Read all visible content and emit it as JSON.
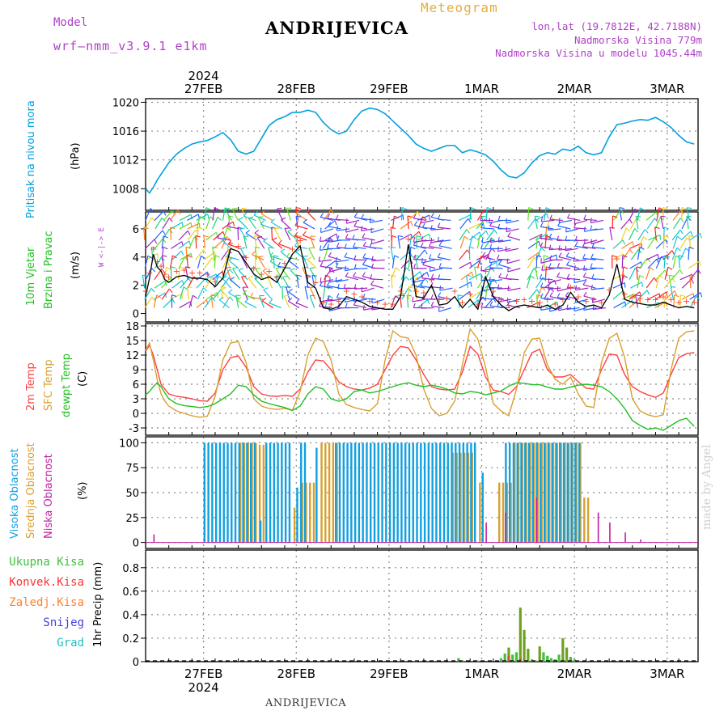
{
  "header": {
    "model_label": "Model",
    "model_name": "wrf–nmm_v3.9.1  e1km",
    "title": "ANDRIJEVICA",
    "meteogram": "Meteogram",
    "lonlat": "lon,lat (19.7812E, 42.7188N)",
    "elevation": "Nadmorska Visina 779m",
    "model_elevation": "Nadmorska Visina u modelu 1045.44m"
  },
  "footer": {
    "station": "ANDRIJEVICA",
    "watermark": "made by Angel"
  },
  "colors": {
    "pressure": "#00a0e0",
    "temp2m": "#ff4040",
    "sfc": "#d8a030",
    "dewpt": "#20c020",
    "cloud_high": "#10a0e0",
    "cloud_mid": "#d8a030",
    "cloud_low": "#c020a0",
    "rain_total": "#40c040",
    "rain_conv": "#ff3030",
    "rain_frz": "#ff8030",
    "snow": "#4040e0",
    "hail": "#20c0c0"
  },
  "chart_data": [
    {
      "type": "line",
      "panel": "pressure",
      "ylabel_left": "Pritisak na nivou mora",
      "ylabel_units": "(hPa)",
      "ylim": [
        1005,
        1020.5
      ],
      "yticks": [
        "1008",
        "1012",
        "1016",
        "1020"
      ],
      "x_days": [
        "27FEB",
        "28FEB",
        "29FEB",
        "1MAR",
        "2MAR",
        "3MAR"
      ],
      "x_year": "2024",
      "grid": true,
      "series": [
        {
          "x": [
            0,
            1,
            2,
            3,
            4,
            6,
            8,
            10,
            12,
            14,
            16,
            18,
            20,
            22,
            24,
            26,
            28,
            30,
            32,
            34,
            36,
            38,
            40,
            42,
            44,
            46,
            48,
            50,
            52,
            54,
            56,
            58,
            60,
            62,
            64,
            66,
            68,
            70,
            72,
            74,
            76,
            78,
            80,
            82,
            84,
            86,
            88,
            90,
            92,
            94,
            96,
            98,
            100,
            102,
            104,
            106,
            108,
            110,
            112,
            114,
            116,
            118,
            120,
            122,
            124,
            126,
            128,
            130,
            132,
            134,
            136,
            138,
            140,
            142
          ],
          "y": [
            1008,
            1007.4,
            1008.2,
            1009.2,
            1010.0,
            1011.6,
            1012.8,
            1013.6,
            1014.2,
            1014.5,
            1014.7,
            1015.2,
            1015.8,
            1014.8,
            1013.2,
            1012.8,
            1013.2,
            1015.0,
            1016.8,
            1017.6,
            1018.0,
            1018.6,
            1018.6,
            1018.9,
            1018.6,
            1017.2,
            1016.2,
            1015.6,
            1016.0,
            1017.6,
            1018.8,
            1019.2,
            1019.0,
            1018.4,
            1017.4,
            1016.4,
            1015.4,
            1014.2,
            1013.6,
            1013.2,
            1013.6,
            1014.0,
            1014.0,
            1013.0,
            1013.4,
            1013.1,
            1012.7,
            1011.8,
            1010.6,
            1009.7,
            1009.5,
            1010.2,
            1011.6,
            1012.6,
            1013.0,
            1012.8,
            1013.5,
            1013.3,
            1013.9,
            1013.0,
            1012.7,
            1013.0,
            1015.2,
            1016.9,
            1017.1,
            1017.4,
            1017.6,
            1017.5,
            1017.9,
            1017.3,
            1016.5,
            1015.4,
            1014.5,
            1014.2
          ]
        }
      ]
    },
    {
      "type": "barbs",
      "panel": "wind",
      "ylabel_left": [
        "10m Vjetar",
        "Brzina i Pravac"
      ],
      "ylabel_units": "(m/s)",
      "direction_key": "W <-|-> E",
      "ylim": [
        -0.6,
        7.2
      ],
      "yticks": [
        "0",
        "2",
        "4",
        "6"
      ],
      "series": [
        {
          "name": "speed",
          "x": [
            0,
            1,
            2,
            3,
            4,
            5,
            6,
            8,
            10,
            12,
            14,
            16,
            18,
            20,
            22,
            24,
            26,
            28,
            30,
            32,
            34,
            36,
            38,
            40,
            42,
            44,
            46,
            48,
            50,
            52,
            54,
            56,
            58,
            60,
            62,
            64,
            66,
            68,
            70,
            72,
            74,
            76,
            78,
            80,
            82,
            84,
            86,
            88,
            90,
            92,
            94,
            96,
            98,
            100,
            102,
            104,
            106,
            108,
            110,
            112,
            114,
            116,
            118,
            120,
            122,
            124,
            126,
            128,
            130,
            132,
            134,
            136,
            138,
            140,
            142
          ],
          "y": [
            1.2,
            2.5,
            4.2,
            3.3,
            3.0,
            2.4,
            2.2,
            2.6,
            2.7,
            2.5,
            2.5,
            2.4,
            1.9,
            2.5,
            4.6,
            4.4,
            3.6,
            2.8,
            2.4,
            2.6,
            2.2,
            3.2,
            4.2,
            4.8,
            2.2,
            1.8,
            0.4,
            0.3,
            0.5,
            1.2,
            1.0,
            0.8,
            0.5,
            0.4,
            0.3,
            0.3,
            1.2,
            4.9,
            1.2,
            1.1,
            2.0,
            0.6,
            0.7,
            1.2,
            0.4,
            1.0,
            0.3,
            2.6,
            1.2,
            0.6,
            0.2,
            0.5,
            0.6,
            0.5,
            0.4,
            0.6,
            0.3,
            0.6,
            1.5,
            0.8,
            0.5,
            0.6,
            0.4,
            1.3,
            3.5,
            1.0,
            0.8,
            0.7,
            0.6,
            0.6,
            0.8,
            0.6,
            0.4,
            0.5,
            0.4
          ]
        }
      ]
    },
    {
      "type": "line",
      "panel": "temperature",
      "ylabel_left": [
        "2m Temp",
        "SFC Temp",
        "dewpt Temp"
      ],
      "ylabel_units": "(C)",
      "ylim": [
        -4.5,
        18.5
      ],
      "yticks": [
        "-3",
        "0",
        "3",
        "6",
        "9",
        "12",
        "15",
        "18"
      ],
      "x": [
        0,
        1,
        2,
        3,
        4,
        5,
        6,
        8,
        10,
        12,
        14,
        16,
        18,
        20,
        22,
        24,
        26,
        28,
        30,
        32,
        34,
        36,
        38,
        40,
        42,
        44,
        46,
        48,
        50,
        52,
        54,
        56,
        58,
        60,
        62,
        64,
        66,
        68,
        70,
        72,
        74,
        76,
        78,
        80,
        82,
        84,
        86,
        88,
        90,
        92,
        94,
        96,
        98,
        100,
        102,
        104,
        106,
        108,
        110,
        112,
        114,
        116,
        118,
        120,
        122,
        124,
        126,
        128,
        130,
        132,
        134,
        136,
        138,
        140,
        142
      ],
      "series": [
        {
          "name": "2m Temp",
          "y": [
            12.8,
            14,
            12,
            9,
            6,
            5,
            4,
            3.5,
            3.3,
            3.0,
            2.6,
            2.5,
            4.2,
            9,
            11.5,
            11.8,
            9.5,
            5.5,
            4,
            3.6,
            3.5,
            3.7,
            3.5,
            5,
            8.5,
            11,
            10.8,
            9,
            6.5,
            5.5,
            5,
            4.8,
            5.2,
            6,
            9,
            12,
            13.8,
            13.5,
            11,
            8,
            5.5,
            5,
            4.8,
            5,
            8.5,
            13.8,
            12.2,
            7.5,
            4.8,
            4.5,
            3.9,
            5.5,
            9,
            12.5,
            13.2,
            9,
            7.5,
            7.5,
            8,
            6.5,
            5.2,
            5.0,
            9,
            12.2,
            12.0,
            8,
            5.5,
            4.5,
            3.8,
            3.3,
            4.2,
            8,
            11.5,
            12.3,
            12.5
          ]
        },
        {
          "name": "SFC Temp",
          "y": [
            13,
            14.5,
            11,
            7,
            4,
            2.5,
            1.5,
            0.5,
            0,
            -0.5,
            -0.8,
            -0.6,
            3.5,
            11,
            14.5,
            14.8,
            10.5,
            3,
            1.5,
            1,
            0.8,
            1,
            0.6,
            4.5,
            12,
            15.5,
            14.8,
            11,
            4,
            1.8,
            1.2,
            0.8,
            0.5,
            2,
            11,
            17,
            15.8,
            15.5,
            12,
            5,
            1,
            -0.5,
            0,
            2.5,
            10,
            17.4,
            15.3,
            9.5,
            2,
            0.5,
            -0.5,
            5,
            12.5,
            15.3,
            15.5,
            10,
            7,
            6,
            7.5,
            4,
            1.5,
            1.2,
            10.5,
            15.4,
            16.5,
            11.5,
            3,
            0.5,
            -0.3,
            -0.7,
            -0.3,
            9,
            15.5,
            16.8,
            17
          ]
        },
        {
          "name": "dewpt Temp",
          "y": [
            3.8,
            4.5,
            5.5,
            6.3,
            5.5,
            4.2,
            3,
            2,
            1.6,
            1.4,
            1.2,
            1.4,
            2,
            3,
            4,
            5.8,
            5.5,
            3.8,
            2.5,
            2,
            1.6,
            1.2,
            0.6,
            1.5,
            4,
            5.5,
            5,
            3,
            2.5,
            3,
            4.5,
            4.8,
            4.2,
            4.5,
            5,
            5.5,
            6,
            6.3,
            5.8,
            5.5,
            5.8,
            5.5,
            5,
            4.2,
            4,
            4.5,
            4.3,
            3.8,
            4.2,
            4.6,
            5.6,
            6.3,
            6.2,
            5.9,
            5.9,
            5.4,
            5.0,
            5.0,
            5.4,
            5.8,
            6.0,
            5.8,
            5.5,
            4.5,
            3,
            1,
            -1.5,
            -2.5,
            -3.3,
            -3.0,
            -3.5,
            -2.5,
            -1.5,
            -1,
            -2.7
          ]
        }
      ]
    },
    {
      "type": "bar",
      "panel": "cloud",
      "ylabel_left": [
        "Visoka Oblacnost",
        "Srednja Oblacnost",
        "Niska Oblacnost"
      ],
      "ylabel_units": "(%)",
      "ylim": [
        -6,
        106
      ],
      "yticks": [
        "0",
        "25",
        "50",
        "75",
        "100"
      ],
      "series": [
        {
          "name": "Visoka Oblacnost",
          "segments": [
            [
              15,
              29,
              100
            ],
            [
              29.5,
              30,
              22
            ],
            [
              31,
              38,
              100
            ],
            [
              39,
              40,
              55
            ],
            [
              40,
              42,
              100
            ],
            [
              44,
              45,
              95
            ],
            [
              49,
              86,
              100
            ],
            [
              87,
              88,
              70
            ],
            [
              93,
              113,
              100
            ]
          ]
        },
        {
          "name": "Srednja Oblacnost",
          "segments": [
            [
              24,
              29,
              100
            ],
            [
              29,
              31,
              98
            ],
            [
              38,
              39,
              35
            ],
            [
              40,
              44,
              60
            ],
            [
              45,
              50,
              100
            ],
            [
              79,
              85,
              90
            ],
            [
              86,
              87,
              60
            ],
            [
              91,
              95,
              60
            ],
            [
              95,
              104,
              100
            ],
            [
              104,
              113,
              100
            ],
            [
              113,
              115,
              45
            ]
          ]
        },
        {
          "name": "Niska Oblacnost",
          "spikes": [
            [
              2,
              8
            ],
            [
              88,
              20
            ],
            [
              93,
              30
            ],
            [
              101,
              45
            ],
            [
              117,
              30
            ],
            [
              120,
              20
            ],
            [
              124,
              10
            ],
            [
              128,
              3
            ]
          ]
        }
      ]
    },
    {
      "type": "bar",
      "panel": "precip",
      "ylabel_left": [
        "Ukupna Kisa",
        "Konvek.Kisa",
        "Zaledj.Kisa",
        "Snijeg",
        "Grad"
      ],
      "ylabel_units": "1hr Precip (mm)",
      "ylim": [
        0,
        0.95
      ],
      "yticks": [
        "0",
        "0.2",
        "0.4",
        "0.6",
        "0.8"
      ],
      "series": [
        {
          "name": "Ukupna Kisa",
          "bars": [
            [
              70,
              0.01
            ],
            [
              81,
              0.03
            ],
            [
              82,
              0.01
            ],
            [
              86,
              0.01
            ],
            [
              92,
              0.03
            ],
            [
              93,
              0.07
            ],
            [
              94,
              0.12
            ],
            [
              95,
              0.06
            ],
            [
              96,
              0.08
            ],
            [
              97,
              0.46
            ],
            [
              98,
              0.27
            ],
            [
              99,
              0.11
            ],
            [
              100,
              0.02
            ],
            [
              101,
              0.01
            ],
            [
              102,
              0.13
            ],
            [
              103,
              0.08
            ],
            [
              104,
              0.05
            ],
            [
              105,
              0.03
            ],
            [
              106,
              0.02
            ],
            [
              107,
              0.06
            ],
            [
              108,
              0.2
            ],
            [
              109,
              0.12
            ],
            [
              110,
              0.04
            ],
            [
              111,
              0.02
            ],
            [
              112,
              0.01
            ]
          ]
        },
        {
          "name": "Konvek.Kisa",
          "bars": [
            [
              94,
              0.05
            ],
            [
              97,
              0.03
            ]
          ]
        }
      ]
    }
  ]
}
